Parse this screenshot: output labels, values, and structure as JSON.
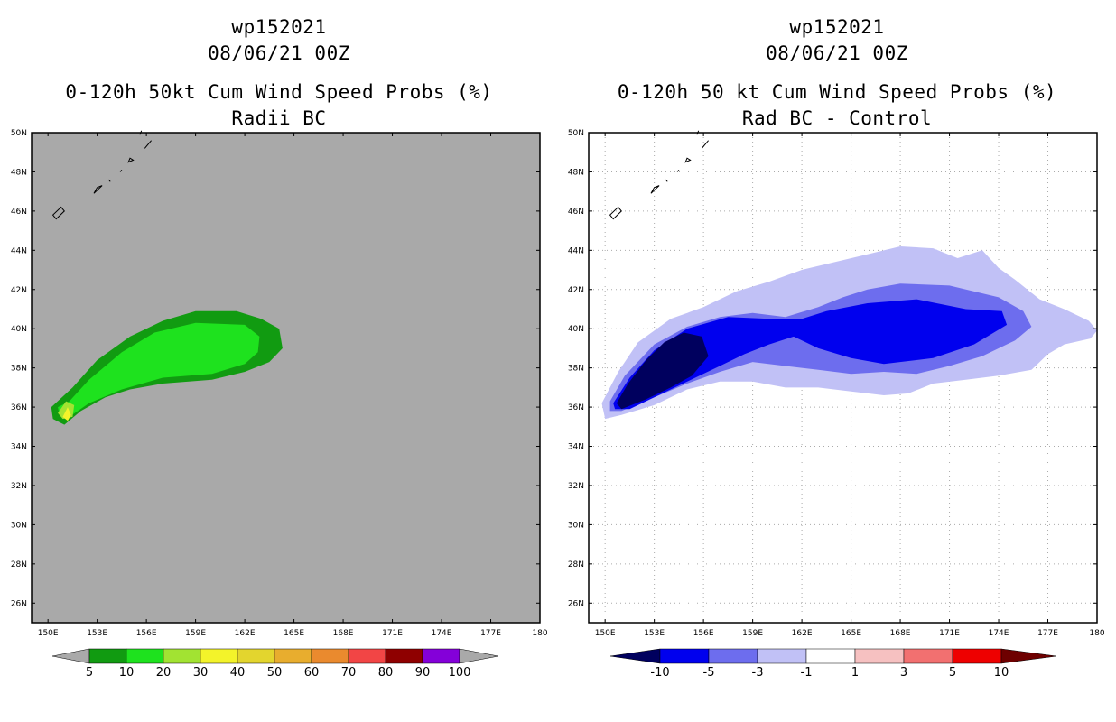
{
  "chart_data": [
    {
      "type": "heatmap",
      "panel": "left",
      "title_lines": [
        "wp152021",
        "08/06/21 00Z",
        "0-120h 50kt Cum Wind Speed Probs (%)",
        "Radii BC"
      ],
      "variable": "0-120h 50kt cumulative wind speed probability (%)",
      "x_ticks": [
        "150E",
        "153E",
        "156E",
        "159E",
        "162E",
        "165E",
        "168E",
        "171E",
        "174E",
        "177E",
        "180"
      ],
      "y_ticks": [
        "50N",
        "48N",
        "46N",
        "44N",
        "42N",
        "40N",
        "38N",
        "36N",
        "34N",
        "32N",
        "30N",
        "28N",
        "26N"
      ],
      "xlim": [
        149.0,
        180.0
      ],
      "ylim": [
        25.0,
        50.0
      ],
      "grid": false,
      "background_color": "#a9a9a9",
      "colorbar": {
        "labels": [
          "5",
          "10",
          "20",
          "30",
          "40",
          "50",
          "60",
          "70",
          "80",
          "90",
          "100"
        ],
        "colors": [
          "#119b11",
          "#1ee21e",
          "#a2e332",
          "#f3f32a",
          "#e3d52e",
          "#e8ad2e",
          "#ea8a2e",
          "#f24545",
          "#8f0000",
          "#8400d9"
        ],
        "end_low": "#a9a9a9",
        "end_high": "#a9a9a9"
      },
      "regions": [
        {
          "level": "5-10",
          "color": "#119b11",
          "points": [
            [
              150.2,
              36.0
            ],
            [
              150.3,
              35.4
            ],
            [
              151.0,
              35.1
            ],
            [
              152.0,
              35.8
            ],
            [
              153.5,
              36.5
            ],
            [
              155.0,
              36.9
            ],
            [
              157.0,
              37.2
            ],
            [
              160.0,
              37.4
            ],
            [
              162.0,
              37.8
            ],
            [
              163.5,
              38.3
            ],
            [
              164.3,
              39.0
            ],
            [
              164.1,
              40.0
            ],
            [
              163.0,
              40.5
            ],
            [
              161.5,
              40.9
            ],
            [
              159.0,
              40.9
            ],
            [
              157.0,
              40.4
            ],
            [
              155.0,
              39.6
            ],
            [
              153.0,
              38.4
            ],
            [
              151.5,
              37.0
            ]
          ]
        },
        {
          "level": "10-20",
          "color": "#1ee21e",
          "points": [
            [
              150.6,
              36.0
            ],
            [
              150.7,
              35.6
            ],
            [
              151.3,
              35.5
            ],
            [
              152.5,
              36.2
            ],
            [
              154.5,
              36.9
            ],
            [
              157.0,
              37.5
            ],
            [
              160.0,
              37.7
            ],
            [
              162.0,
              38.2
            ],
            [
              162.8,
              38.8
            ],
            [
              162.9,
              39.6
            ],
            [
              162.0,
              40.2
            ],
            [
              159.0,
              40.3
            ],
            [
              156.5,
              39.8
            ],
            [
              154.5,
              38.8
            ],
            [
              152.5,
              37.4
            ],
            [
              151.3,
              36.3
            ]
          ]
        },
        {
          "level": "20-30",
          "color": "#a2e332",
          "points": [
            [
              150.6,
              35.7
            ],
            [
              150.9,
              35.4
            ],
            [
              151.5,
              35.5
            ],
            [
              151.6,
              36.1
            ],
            [
              151.1,
              36.3
            ]
          ]
        },
        {
          "level": "30-40",
          "color": "#f3f32a",
          "points": [
            [
              150.9,
              35.5
            ],
            [
              151.2,
              35.3
            ],
            [
              151.4,
              35.6
            ],
            [
              151.2,
              36.0
            ]
          ]
        }
      ],
      "coastlines": [
        [
          [
            150.5,
            45.6
          ],
          [
            151.0,
            46.0
          ],
          [
            150.8,
            46.2
          ],
          [
            150.3,
            45.8
          ]
        ],
        [
          [
            152.8,
            46.9
          ],
          [
            153.3,
            47.3
          ],
          [
            153.0,
            47.2
          ]
        ],
        [
          [
            153.7,
            47.6
          ],
          [
            153.8,
            47.5
          ]
        ],
        [
          [
            154.4,
            48.0
          ],
          [
            154.5,
            48.1
          ]
        ],
        [
          [
            154.9,
            48.5
          ],
          [
            155.2,
            48.6
          ],
          [
            155.0,
            48.7
          ]
        ],
        [
          [
            155.9,
            49.2
          ],
          [
            156.3,
            49.6
          ],
          [
            156.0,
            49.3
          ]
        ],
        [
          [
            155.6,
            49.9
          ],
          [
            155.7,
            50.1
          ]
        ]
      ]
    },
    {
      "type": "heatmap",
      "panel": "right",
      "title_lines": [
        "wp152021",
        "08/06/21 00Z",
        "0-120h 50 kt Cum Wind Speed Probs (%)",
        "Rad BC - Control"
      ],
      "variable": "Difference: Radii BC minus Control (%)",
      "x_ticks": [
        "150E",
        "153E",
        "156E",
        "159E",
        "162E",
        "165E",
        "168E",
        "171E",
        "174E",
        "177E",
        "180"
      ],
      "y_ticks": [
        "50N",
        "48N",
        "46N",
        "44N",
        "42N",
        "40N",
        "38N",
        "36N",
        "34N",
        "32N",
        "30N",
        "28N",
        "26N"
      ],
      "xlim": [
        149.0,
        180.0
      ],
      "ylim": [
        25.0,
        50.0
      ],
      "grid": true,
      "background_color": "#ffffff",
      "colorbar": {
        "labels": [
          "-10",
          "-5",
          "-3",
          "-1",
          "1",
          "3",
          "5",
          "10"
        ],
        "colors": [
          "#0000ee",
          "#6d6dee",
          "#c1c1f6",
          "#ffffff",
          "#f6c1c1",
          "#f27070",
          "#ee0000"
        ],
        "end_low": "#00005e",
        "end_high": "#6e0000"
      },
      "regions": [
        {
          "level": "-3 to -1",
          "color": "#c1c1f6",
          "points": [
            [
              149.8,
              36.2
            ],
            [
              150.0,
              35.4
            ],
            [
              151.0,
              35.6
            ],
            [
              153.0,
              36.1
            ],
            [
              155.0,
              36.9
            ],
            [
              157.0,
              37.3
            ],
            [
              159.0,
              37.3
            ],
            [
              161.0,
              37.0
            ],
            [
              163.0,
              37.0
            ],
            [
              165.0,
              36.8
            ],
            [
              167.0,
              36.6
            ],
            [
              168.5,
              36.7
            ],
            [
              170.0,
              37.2
            ],
            [
              172.0,
              37.4
            ],
            [
              174.0,
              37.6
            ],
            [
              176.0,
              37.9
            ],
            [
              177.0,
              38.7
            ],
            [
              178.0,
              39.2
            ],
            [
              179.6,
              39.5
            ],
            [
              180.0,
              39.9
            ],
            [
              179.5,
              40.4
            ],
            [
              178.0,
              41.0
            ],
            [
              176.5,
              41.5
            ],
            [
              175.0,
              42.5
            ],
            [
              174.0,
              43.1
            ],
            [
              173.0,
              44.0
            ],
            [
              171.5,
              43.6
            ],
            [
              170.0,
              44.1
            ],
            [
              168.0,
              44.2
            ],
            [
              166.0,
              43.8
            ],
            [
              164.0,
              43.4
            ],
            [
              162.0,
              43.0
            ],
            [
              160.0,
              42.4
            ],
            [
              158.0,
              41.9
            ],
            [
              156.0,
              41.1
            ],
            [
              154.0,
              40.5
            ],
            [
              152.0,
              39.3
            ],
            [
              150.8,
              37.8
            ]
          ]
        },
        {
          "level": "-5 to -3",
          "color": "#6d6dee",
          "points": [
            [
              150.3,
              36.3
            ],
            [
              150.3,
              35.8
            ],
            [
              151.0,
              35.8
            ],
            [
              153.0,
              36.5
            ],
            [
              155.0,
              37.2
            ],
            [
              157.0,
              37.8
            ],
            [
              159.0,
              38.3
            ],
            [
              161.0,
              38.1
            ],
            [
              163.0,
              37.9
            ],
            [
              165.0,
              37.7
            ],
            [
              167.0,
              37.8
            ],
            [
              169.0,
              37.7
            ],
            [
              171.0,
              38.1
            ],
            [
              173.0,
              38.6
            ],
            [
              175.0,
              39.4
            ],
            [
              176.0,
              40.1
            ],
            [
              175.5,
              40.9
            ],
            [
              174.0,
              41.6
            ],
            [
              171.0,
              42.2
            ],
            [
              168.0,
              42.3
            ],
            [
              166.0,
              42.0
            ],
            [
              164.5,
              41.6
            ],
            [
              163.0,
              41.1
            ],
            [
              161.0,
              40.6
            ],
            [
              159.0,
              40.8
            ],
            [
              157.0,
              40.6
            ],
            [
              155.0,
              40.1
            ],
            [
              153.0,
              39.2
            ],
            [
              151.2,
              37.6
            ]
          ]
        },
        {
          "level": "-10 to -5",
          "color": "#0000ee",
          "points": [
            [
              150.5,
              36.2
            ],
            [
              150.6,
              35.9
            ],
            [
              151.5,
              35.9
            ],
            [
              153.5,
              36.7
            ],
            [
              155.5,
              37.5
            ],
            [
              157.0,
              38.1
            ],
            [
              158.5,
              38.7
            ],
            [
              160.0,
              39.2
            ],
            [
              161.5,
              39.6
            ],
            [
              163.0,
              39.0
            ],
            [
              165.0,
              38.5
            ],
            [
              167.0,
              38.2
            ],
            [
              170.0,
              38.5
            ],
            [
              172.5,
              39.2
            ],
            [
              174.5,
              40.2
            ],
            [
              174.2,
              40.9
            ],
            [
              172.0,
              41.0
            ],
            [
              169.0,
              41.5
            ],
            [
              166.0,
              41.3
            ],
            [
              163.5,
              40.9
            ],
            [
              162.0,
              40.5
            ],
            [
              160.0,
              40.5
            ],
            [
              157.5,
              40.6
            ],
            [
              155.0,
              40.0
            ],
            [
              153.0,
              38.9
            ],
            [
              151.5,
              37.5
            ]
          ]
        },
        {
          "level": "< -10",
          "color": "#00005e",
          "points": [
            [
              150.7,
              36.2
            ],
            [
              151.0,
              35.9
            ],
            [
              152.5,
              36.4
            ],
            [
              154.0,
              37.0
            ],
            [
              155.3,
              37.6
            ],
            [
              156.3,
              38.6
            ],
            [
              155.9,
              39.6
            ],
            [
              154.8,
              39.8
            ],
            [
              153.6,
              39.3
            ],
            [
              152.5,
              38.4
            ],
            [
              151.4,
              37.2
            ]
          ]
        }
      ],
      "coastlines": [
        [
          [
            150.5,
            45.6
          ],
          [
            151.0,
            46.0
          ],
          [
            150.8,
            46.2
          ],
          [
            150.3,
            45.8
          ]
        ],
        [
          [
            152.8,
            46.9
          ],
          [
            153.3,
            47.3
          ],
          [
            153.0,
            47.2
          ]
        ],
        [
          [
            153.7,
            47.6
          ],
          [
            153.8,
            47.5
          ]
        ],
        [
          [
            154.4,
            48.0
          ],
          [
            154.5,
            48.1
          ]
        ],
        [
          [
            154.9,
            48.5
          ],
          [
            155.2,
            48.6
          ],
          [
            155.0,
            48.7
          ]
        ],
        [
          [
            155.9,
            49.2
          ],
          [
            156.3,
            49.6
          ],
          [
            156.0,
            49.3
          ]
        ],
        [
          [
            155.6,
            49.9
          ],
          [
            155.7,
            50.1
          ]
        ]
      ]
    }
  ]
}
